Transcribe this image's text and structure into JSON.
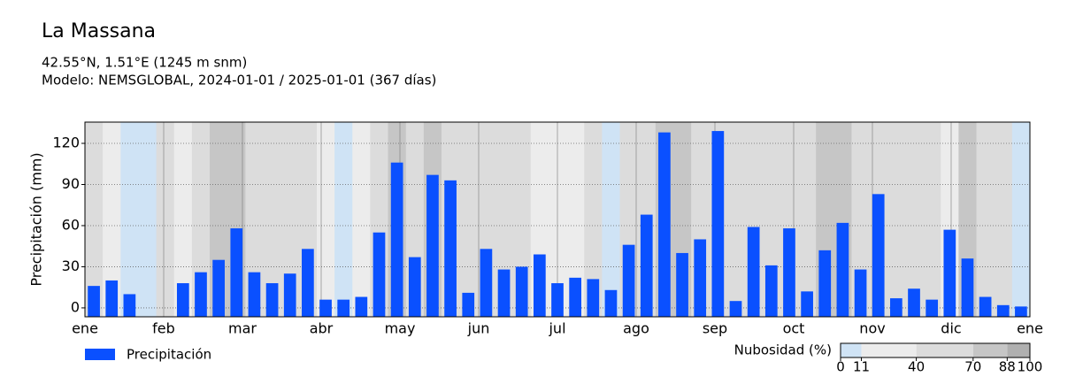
{
  "chart_data": {
    "type": "bar",
    "title": "La Massana",
    "subtitle": [
      "42.55°N, 1.51°E (1245 m snm)",
      "Modelo: NEMSGLOBAL, 2024-01-01 / 2025-01-01 (367 días)"
    ],
    "y_label": "Precipitación (mm)",
    "x_labels": [
      "ene",
      "feb",
      "mar",
      "abr",
      "may",
      "jun",
      "jul",
      "ago",
      "sep",
      "oct",
      "nov",
      "dic",
      "ene"
    ],
    "categories": [
      null,
      null,
      null,
      null,
      null,
      null,
      null,
      null,
      null,
      null,
      null,
      null,
      null,
      null,
      null,
      null,
      null,
      null,
      null,
      null,
      null,
      null,
      null,
      null,
      null,
      null,
      null,
      null,
      null,
      null,
      null,
      null,
      null,
      null,
      null,
      null,
      null,
      null,
      null,
      null,
      null,
      null,
      null,
      null,
      null,
      null,
      null,
      null,
      null,
      null,
      null,
      null,
      null
    ],
    "series": [
      {
        "name": "Precipitación",
        "color": "#0a50ff",
        "values": [
          16,
          20,
          10,
          null,
          null,
          18,
          26,
          35,
          58,
          26,
          18,
          25,
          43,
          6,
          6,
          8,
          55,
          106,
          37,
          97,
          93,
          11,
          43,
          28,
          30,
          39,
          18,
          22,
          21,
          13,
          46,
          68,
          128,
          40,
          50,
          129,
          5,
          59,
          31,
          58,
          12,
          42,
          62,
          28,
          83,
          7,
          14,
          6,
          57,
          36,
          8,
          2,
          1
        ]
      }
    ],
    "cloud": {
      "name": "Nubosidad (%)",
      "values": [
        50,
        30,
        8,
        5,
        60,
        20,
        45,
        75,
        80,
        60,
        55,
        50,
        70,
        40,
        10,
        30,
        65,
        80,
        60,
        75,
        70,
        55,
        45,
        60,
        50,
        40,
        30,
        20,
        60,
        10,
        55,
        70,
        80,
        75,
        65,
        70,
        60,
        50,
        45,
        55,
        65,
        75,
        80,
        70,
        60,
        65,
        55,
        60,
        30,
        75,
        65,
        50,
        10
      ],
      "bounds": [
        0,
        11,
        40,
        70,
        88,
        100
      ],
      "colors": [
        "#cfe3f5",
        "#ececec",
        "#dcdcdc",
        "#c6c6c6",
        "#b0b0b0"
      ]
    },
    "ylim": [
      -6.5,
      135.5
    ],
    "yticks": [
      0,
      30,
      60,
      90,
      120
    ],
    "grid": true
  }
}
